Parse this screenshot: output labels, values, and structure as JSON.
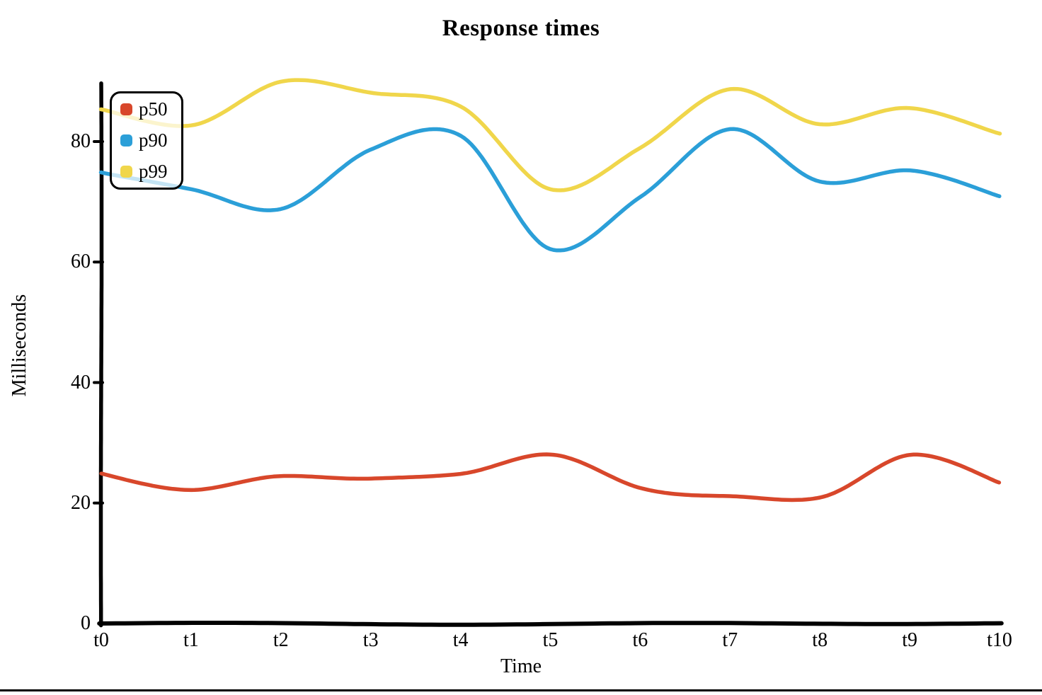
{
  "chart_data": {
    "type": "line",
    "title": "Response times",
    "xlabel": "Time",
    "ylabel": "Milliseconds",
    "categories": [
      "t0",
      "t1",
      "t2",
      "t3",
      "t4",
      "t5",
      "t6",
      "t7",
      "t8",
      "t9",
      "t10"
    ],
    "x": [
      0,
      1,
      2,
      3,
      4,
      5,
      6,
      7,
      8,
      9,
      10
    ],
    "yticks": [
      0,
      20,
      40,
      60,
      80
    ],
    "ylim": [
      0,
      94
    ],
    "grid": false,
    "legend_position": "upper-left",
    "style": "hand-drawn-sketch",
    "axis_color": "#000000",
    "series": [
      {
        "name": "p50",
        "color": "#d8472b",
        "values": [
          25,
          22,
          24.5,
          24,
          25,
          28,
          22.5,
          21,
          21,
          28,
          23.5
        ]
      },
      {
        "name": "p90",
        "color": "#2b9fd8",
        "values": [
          75,
          72,
          69,
          78.5,
          81,
          62,
          71,
          82,
          73.5,
          75,
          71
        ]
      },
      {
        "name": "p99",
        "color": "#f0d64b",
        "values": [
          85.5,
          82.5,
          90,
          88,
          86,
          72,
          79,
          88.5,
          83,
          85.5,
          81.5
        ]
      }
    ]
  }
}
